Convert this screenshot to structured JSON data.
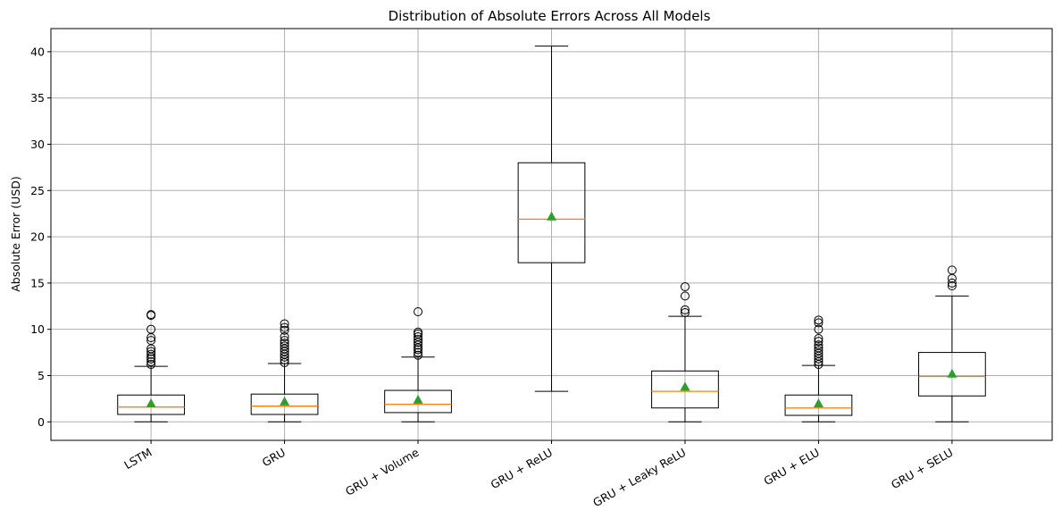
{
  "chart_data": {
    "type": "box",
    "title": "Distribution of Absolute Errors Across All Models",
    "xlabel": "",
    "ylabel": "Absolute Error (USD)",
    "ylim": [
      -2,
      42.5
    ],
    "yticks": [
      0,
      5,
      10,
      15,
      20,
      25,
      30,
      35,
      40
    ],
    "grid": true,
    "colors": {
      "box": "#000000",
      "median": "#ff7f0e",
      "mean": "#2ca02c",
      "grid": "#b0b0b0"
    },
    "categories": [
      "LSTM",
      "GRU",
      "GRU + Volume",
      "GRU + ReLU",
      "GRU + Leaky ReLU",
      "GRU + ELU",
      "GRU + SELU"
    ],
    "boxes": [
      {
        "whisker_low": 0,
        "q1": 0.8,
        "median": 1.6,
        "q3": 2.9,
        "whisker_high": 6.0,
        "mean": 2.0,
        "outliers": [
          6.2,
          6.5,
          6.8,
          7.0,
          7.3,
          7.6,
          7.9,
          8.8,
          9.1,
          10.0,
          11.5,
          11.6
        ]
      },
      {
        "whisker_low": 0,
        "q1": 0.8,
        "median": 1.7,
        "q3": 3.0,
        "whisker_high": 6.3,
        "mean": 2.2,
        "outliers": [
          6.4,
          6.7,
          7.0,
          7.3,
          7.6,
          7.9,
          8.2,
          8.5,
          8.8,
          9.2,
          9.9,
          10.2,
          10.6
        ]
      },
      {
        "whisker_low": 0,
        "q1": 1.0,
        "median": 1.9,
        "q3": 3.4,
        "whisker_high": 7.0,
        "mean": 2.4,
        "outliers": [
          7.2,
          7.5,
          7.8,
          8.0,
          8.3,
          8.6,
          8.9,
          9.2,
          9.5,
          9.7,
          11.9
        ]
      },
      {
        "whisker_low": 3.3,
        "q1": 17.2,
        "median": 21.9,
        "q3": 28.0,
        "whisker_high": 40.6,
        "mean": 22.2,
        "outliers": []
      },
      {
        "whisker_low": 0,
        "q1": 1.5,
        "median": 3.3,
        "q3": 5.5,
        "whisker_high": 11.4,
        "mean": 3.8,
        "outliers": [
          11.8,
          12.1,
          13.6,
          14.6
        ]
      },
      {
        "whisker_low": 0,
        "q1": 0.7,
        "median": 1.5,
        "q3": 2.9,
        "whisker_high": 6.1,
        "mean": 2.0,
        "outliers": [
          6.2,
          6.5,
          6.8,
          7.1,
          7.4,
          7.7,
          8.0,
          8.3,
          8.7,
          9.0,
          10.0,
          10.7,
          11.0
        ]
      },
      {
        "whisker_low": 0,
        "q1": 2.8,
        "median": 4.9,
        "q3": 7.5,
        "whisker_high": 13.6,
        "mean": 5.2,
        "outliers": [
          14.7,
          15.0,
          15.5,
          16.4
        ]
      }
    ]
  }
}
